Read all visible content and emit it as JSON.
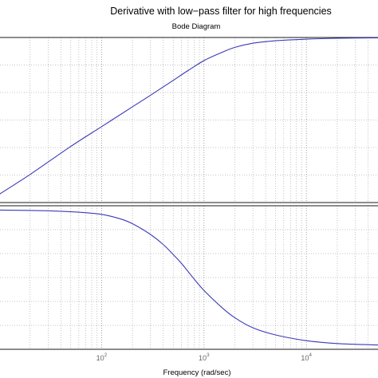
{
  "chart_data": {
    "type": "line",
    "title": "Derivative with low−pass filter for high frequencies",
    "subtitle": "Bode Diagram",
    "xlabel": "Frequency  (rad/sec)",
    "x_scale": "log",
    "xlim": [
      10,
      50000
    ],
    "x_tick_labels": [
      {
        "value": 100,
        "base": "10",
        "exponent": "2"
      },
      {
        "value": 1000,
        "base": "10",
        "exponent": "3"
      },
      {
        "value": 10000,
        "base": "10",
        "exponent": "4"
      }
    ],
    "grid": true,
    "series_color": "#3a3ab8",
    "panels": [
      {
        "name": "magnitude",
        "ylim": [
          0,
          1
        ],
        "y_tick_labels_visible": false,
        "x": [
          10,
          20,
          50,
          100,
          200,
          300,
          500,
          700,
          1000,
          1500,
          2000,
          3000,
          5000,
          10000,
          20000,
          50000
        ],
        "values": [
          0.05,
          0.17,
          0.34,
          0.46,
          0.58,
          0.65,
          0.74,
          0.8,
          0.86,
          0.91,
          0.94,
          0.965,
          0.98,
          0.99,
          0.995,
          0.998
        ]
      },
      {
        "name": "phase",
        "ylim": [
          0,
          1
        ],
        "y_tick_labels_visible": false,
        "x": [
          10,
          30,
          60,
          100,
          150,
          200,
          300,
          400,
          500,
          600,
          800,
          1000,
          1500,
          2000,
          3000,
          5000,
          10000,
          20000,
          50000
        ],
        "values": [
          0.97,
          0.965,
          0.955,
          0.94,
          0.91,
          0.875,
          0.8,
          0.73,
          0.66,
          0.6,
          0.49,
          0.41,
          0.29,
          0.22,
          0.15,
          0.1,
          0.06,
          0.04,
          0.03
        ]
      }
    ]
  }
}
